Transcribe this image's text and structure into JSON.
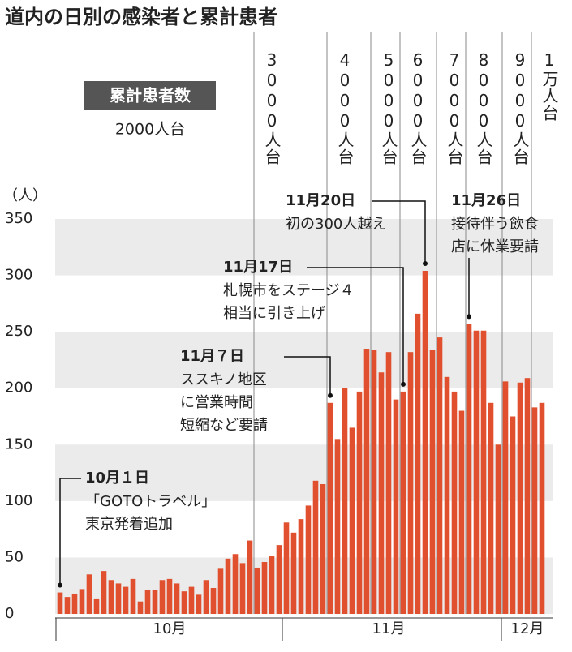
{
  "chart_data": {
    "type": "bar",
    "title": "道内の日別の感染者と累計患者",
    "y_unit": "（人）",
    "legend_box": "累計患者数",
    "legend_sub": "2000人台",
    "milestones": [
      "3000人台",
      "4000人台",
      "5000人台",
      "6000人台",
      "7000人台",
      "8000人台",
      "9000人台",
      "1万人台"
    ],
    "callouts": [
      {
        "date": "10月１日",
        "lines": [
          "「GOTOトラベル」",
          "東京発着追加"
        ]
      },
      {
        "date": "11月７日",
        "lines": [
          "ススキノ地区",
          "に営業時間",
          "短縮など要請"
        ]
      },
      {
        "date": "11月17日",
        "lines": [
          "札幌市をステージ４",
          "相当に引き上げ"
        ]
      },
      {
        "date": "11月20日",
        "lines": [
          "初の300人越え"
        ]
      },
      {
        "date": "11月26日",
        "lines": [
          "接待伴う飲食",
          "店に休業要請"
        ]
      }
    ],
    "categories": [
      null,
      null,
      null,
      null,
      null,
      null,
      null,
      null,
      null,
      null,
      null,
      null,
      null,
      null,
      null,
      "10月",
      null,
      null,
      null,
      null,
      null,
      null,
      null,
      null,
      null,
      null,
      null,
      null,
      null,
      null,
      null,
      null,
      null,
      null,
      null,
      null,
      null,
      null,
      null,
      null,
      null,
      null,
      null,
      null,
      null,
      "11月",
      null,
      null,
      null,
      null,
      null,
      null,
      null,
      null,
      null,
      null,
      null,
      null,
      null,
      null,
      null,
      null,
      null,
      null,
      "12月",
      null,
      null
    ],
    "values": [
      19,
      15,
      18,
      22,
      35,
      13,
      38,
      30,
      27,
      24,
      31,
      11,
      21,
      21,
      30,
      31,
      27,
      20,
      24,
      17,
      30,
      23,
      40,
      49,
      53,
      45,
      65,
      41,
      46,
      51,
      61,
      81,
      72,
      84,
      96,
      118,
      115,
      187,
      155,
      200,
      165,
      197,
      235,
      234,
      214,
      232,
      190,
      197,
      232,
      266,
      304,
      234,
      245,
      210,
      197,
      180,
      257,
      251,
      251,
      187,
      150,
      206,
      175,
      205,
      209,
      183,
      187
    ],
    "color": "#e0502e",
    "ylim": [
      0,
      350
    ],
    "yticks": [
      0,
      50,
      100,
      150,
      200,
      250,
      300,
      350
    ],
    "grid": true
  }
}
